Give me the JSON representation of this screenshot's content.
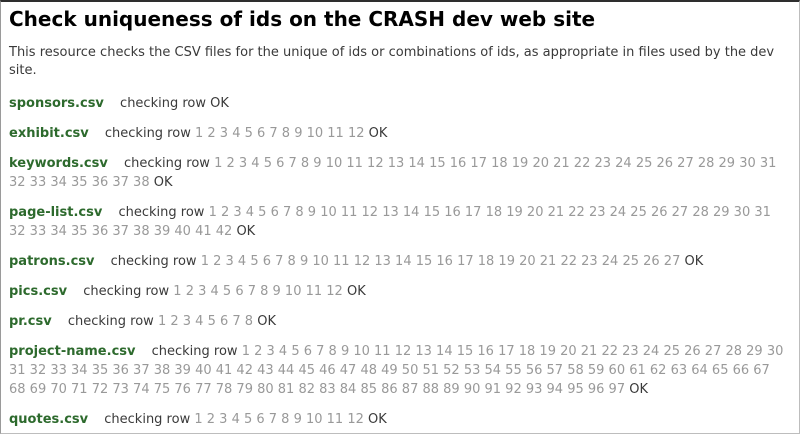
{
  "page": {
    "title": "Check uniqueness of ids on the CRASH dev web site",
    "description": "This resource checks the CSV files for the unique of ids or combinations of ids, as appropriate in files used by the dev site."
  },
  "checks": {
    "checking_label": "checking row",
    "ok_label": "OK",
    "files": [
      {
        "name": "sponsors.csv",
        "rows": ""
      },
      {
        "name": "exhibit.csv",
        "rows": "1 2 3 4 5 6 7 8 9 10 11 12"
      },
      {
        "name": "keywords.csv",
        "rows": "1 2 3 4 5 6 7 8 9 10 11 12 13 14 15 16 17 18 19 20 21 22 23 24 25 26 27 28 29 30 31 32 33 34 35 36 37 38"
      },
      {
        "name": "page-list.csv",
        "rows": "1 2 3 4 5 6 7 8 9 10 11 12 13 14 15 16 17 18 19 20 21 22 23 24 25 26 27 28 29 30 31 32 33 34 35 36 37 38 39 40 41 42"
      },
      {
        "name": "patrons.csv",
        "rows": "1 2 3 4 5 6 7 8 9 10 11 12 13 14 15 16 17 18 19 20 21 22 23 24 25 26 27"
      },
      {
        "name": "pics.csv",
        "rows": "1 2 3 4 5 6 7 8 9 10 11 12"
      },
      {
        "name": "pr.csv",
        "rows": "1 2 3 4 5 6 7 8"
      },
      {
        "name": "project-name.csv",
        "rows": "1 2 3 4 5 6 7 8 9 10 11 12 13 14 15 16 17 18 19 20 21 22 23 24 25 26 27 28 29 30 31 32 33 34 35 36 37 38 39 40 41 42 43 44 45 46 47 48 49 50 51 52 53 54 55 56 57 58 59 60 61 62 63 64 65 66 67 68 69 70 71 72 73 74 75 76 77 78 79 80 81 82 83 84 85 86 87 88 89 90 91 92 93 94 95 96 97"
      },
      {
        "name": "quotes.csv",
        "rows": "1 2 3 4 5 6 7 8 9 10 11 12"
      }
    ]
  },
  "colors": {
    "title_black": "#000000",
    "text_dark": "#3a3a3a",
    "filename_green": "#2d6a2d",
    "number_gray": "#999999",
    "page_bg": "#ffffff",
    "border_light": "#bdbdbd",
    "border_dark": "#2e2e2e"
  }
}
